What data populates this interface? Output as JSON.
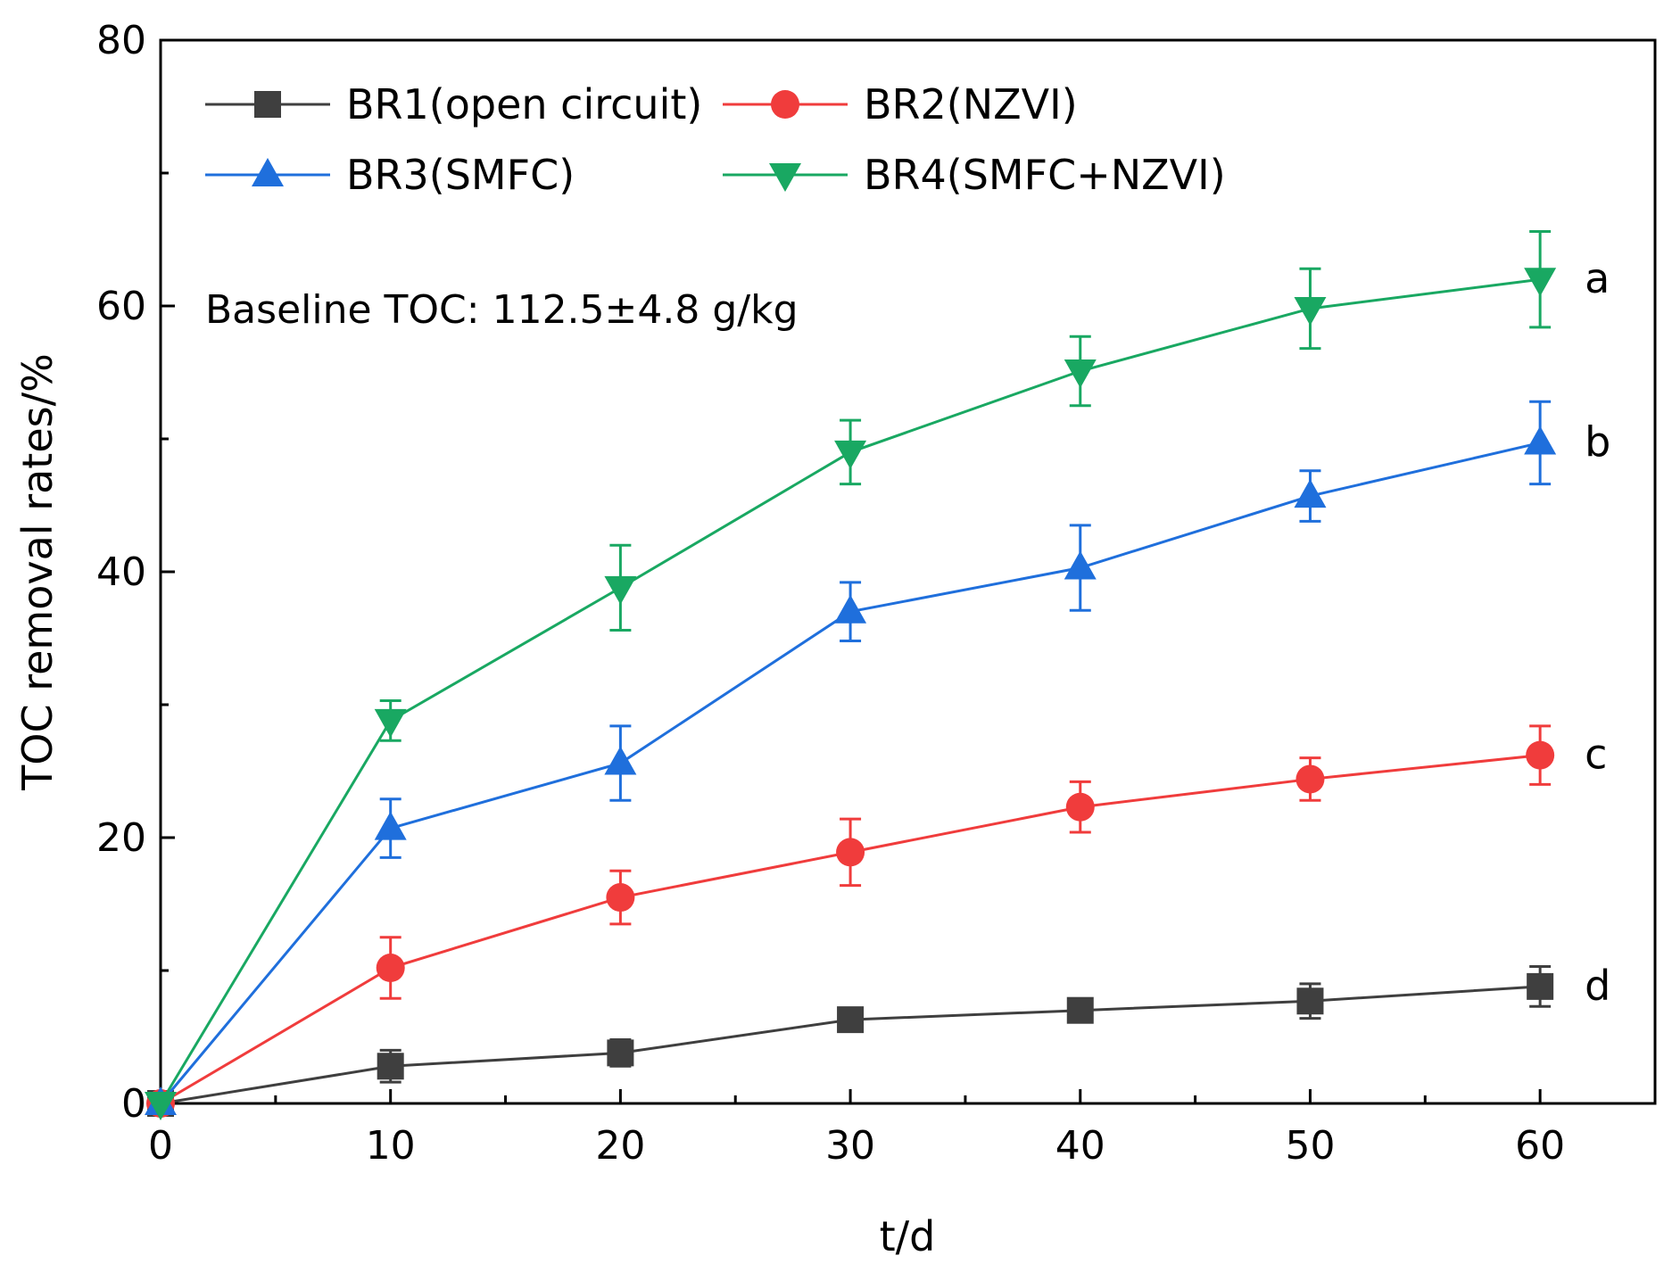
{
  "chart_data": {
    "type": "line",
    "title": "",
    "xlabel": "t/d",
    "ylabel": "TOC removal rates/%",
    "xlim": [
      0,
      65
    ],
    "ylim": [
      0,
      80
    ],
    "xticks": [
      0,
      10,
      20,
      30,
      40,
      50,
      60
    ],
    "yticks": [
      0,
      20,
      40,
      60,
      80
    ],
    "grid": false,
    "legend_position": "top-left",
    "annotation": "Baseline TOC: 112.5±4.8 g/kg",
    "x": [
      0,
      10,
      20,
      30,
      40,
      50,
      60
    ],
    "series": [
      {
        "name": "BR1(open circuit)",
        "color": "#3f3f3f",
        "marker": "square",
        "values": [
          0,
          2.8,
          3.8,
          6.3,
          7.0,
          7.7,
          8.8
        ],
        "errors": [
          0,
          1.2,
          1.0,
          0.5,
          0.5,
          1.3,
          1.5
        ],
        "end_label": "d"
      },
      {
        "name": "BR2(NZVI)",
        "color": "#f03c3c",
        "marker": "circle",
        "values": [
          0,
          10.2,
          15.5,
          18.9,
          22.3,
          24.4,
          26.2
        ],
        "errors": [
          0,
          2.3,
          2.0,
          2.5,
          1.9,
          1.6,
          2.2
        ],
        "end_label": "c"
      },
      {
        "name": "BR3(SMFC)",
        "color": "#1f6fdc",
        "marker": "triangle-up",
        "values": [
          0,
          20.7,
          25.6,
          37.0,
          40.3,
          45.7,
          49.7
        ],
        "errors": [
          0,
          2.2,
          2.8,
          2.2,
          3.2,
          1.9,
          3.1
        ],
        "end_label": "b"
      },
      {
        "name": "BR4(SMFC+NZVI)",
        "color": "#19a862",
        "marker": "triangle-down",
        "values": [
          0,
          28.8,
          38.8,
          49.0,
          55.1,
          59.8,
          62.0
        ],
        "errors": [
          0,
          1.5,
          3.2,
          2.4,
          2.6,
          3.0,
          3.6
        ],
        "end_label": "a"
      }
    ]
  }
}
